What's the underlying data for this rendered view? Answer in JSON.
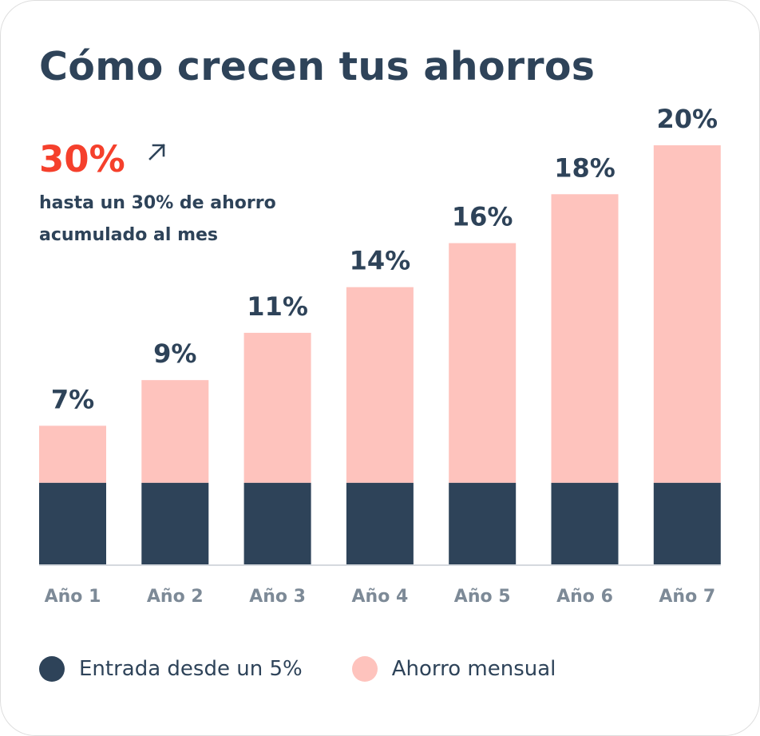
{
  "card": {
    "title": "Cómo crecen tus ahorros",
    "highlight": {
      "value": "30%",
      "icon": "arrow-up-right-icon",
      "description": "hasta un 30% de ahorro acumulado al mes"
    }
  },
  "colors": {
    "title": "#2e4359",
    "highlight": "#f5402c",
    "base": "#2e4359",
    "savings": "#fec3bd",
    "axis_label": "#7d8a97",
    "axis_line": "#d5d9de"
  },
  "chart_data": {
    "type": "bar",
    "stacked": true,
    "categories": [
      "Año 1",
      "Año 2",
      "Año 3",
      "Año 4",
      "Año 5",
      "Año 6",
      "Año 7"
    ],
    "labels": [
      "7%",
      "9%",
      "11%",
      "14%",
      "16%",
      "18%",
      "20%"
    ],
    "series": [
      {
        "name": "Entrada desde un 5%",
        "values": [
          5,
          5,
          5,
          5,
          5,
          5,
          5
        ]
      },
      {
        "name": "Ahorro mensual",
        "values": [
          3.5,
          6.3,
          9.2,
          12,
          14.7,
          17.7,
          20.7
        ]
      }
    ],
    "ylim": [
      0,
      25.7
    ],
    "grid": false,
    "legend_position": "bottom-left"
  }
}
